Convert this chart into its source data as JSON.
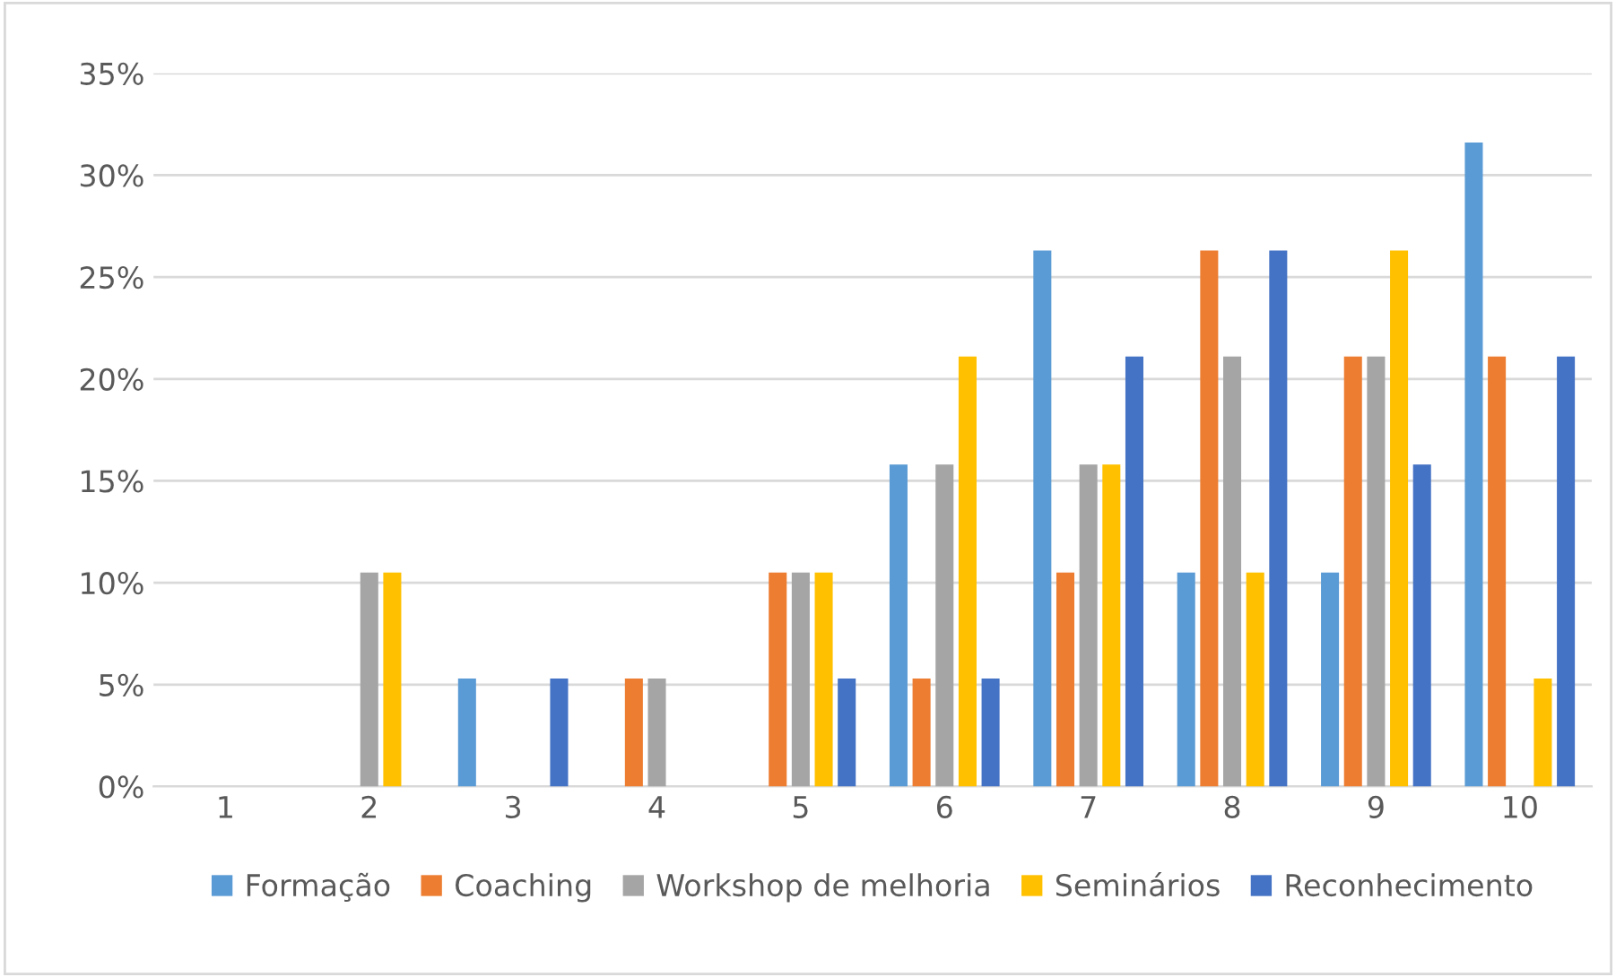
{
  "chart_data": {
    "type": "bar",
    "categories": [
      "1",
      "2",
      "3",
      "4",
      "5",
      "6",
      "7",
      "8",
      "9",
      "10"
    ],
    "series": [
      {
        "name": "Formação",
        "color": "#5b9bd5",
        "values": [
          0,
          0,
          5.3,
          0,
          0,
          15.8,
          26.3,
          10.5,
          10.5,
          31.6
        ]
      },
      {
        "name": "Coaching",
        "color": "#ed7d31",
        "values": [
          0,
          0,
          0,
          5.3,
          10.5,
          5.3,
          10.5,
          26.3,
          21.1,
          21.1
        ]
      },
      {
        "name": "Workshop de melhoria",
        "color": "#a5a5a5",
        "values": [
          0,
          10.5,
          0,
          5.3,
          10.5,
          15.8,
          15.8,
          21.1,
          21.1,
          0
        ]
      },
      {
        "name": "Seminários",
        "color": "#ffc000",
        "values": [
          0,
          10.5,
          0,
          0,
          10.5,
          21.1,
          15.8,
          10.5,
          26.3,
          5.3
        ]
      },
      {
        "name": "Reconhecimento",
        "color": "#4472c4",
        "values": [
          0,
          0,
          5.3,
          0,
          5.3,
          5.3,
          21.1,
          26.3,
          15.8,
          21.1
        ]
      }
    ],
    "ylim": [
      0,
      35
    ],
    "yticks": [
      {
        "value": 0,
        "label": "0%"
      },
      {
        "value": 5,
        "label": "5%"
      },
      {
        "value": 10,
        "label": "10%"
      },
      {
        "value": 15,
        "label": "15%"
      },
      {
        "value": 20,
        "label": "20%"
      },
      {
        "value": 25,
        "label": "25%"
      },
      {
        "value": 30,
        "label": "30%"
      },
      {
        "value": 35,
        "label": "35%"
      }
    ],
    "grid": "y",
    "legend": "bottom"
  }
}
